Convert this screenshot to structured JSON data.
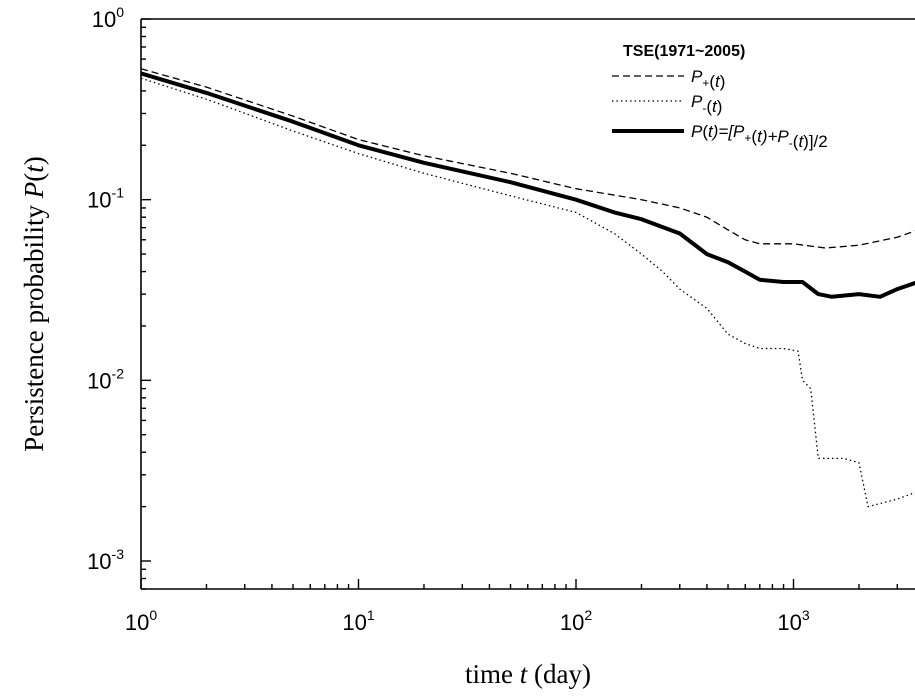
{
  "chart_data": {
    "type": "line",
    "title": "",
    "xlabel": {
      "prefix": "time ",
      "variable": "t",
      "suffix": " (day)"
    },
    "ylabel": {
      "prefix": "Persistence probability ",
      "symbol": "P",
      "paren_open": "(",
      "variable": "t",
      "paren_close": ")"
    },
    "x_scale": "log",
    "y_scale": "log",
    "xlim": [
      1,
      4000
    ],
    "ylim": [
      0.0007,
      1
    ],
    "x_ticks": [
      {
        "value": 1,
        "base": "10",
        "exp": "0"
      },
      {
        "value": 10,
        "base": "10",
        "exp": "1"
      },
      {
        "value": 100,
        "base": "10",
        "exp": "2"
      },
      {
        "value": 1000,
        "base": "10",
        "exp": "3"
      }
    ],
    "y_ticks": [
      {
        "value": 1,
        "base": "10",
        "exp": "0"
      },
      {
        "value": 0.1,
        "base": "10",
        "exp": "-1"
      },
      {
        "value": 0.01,
        "base": "10",
        "exp": "-2"
      },
      {
        "value": 0.001,
        "base": "10",
        "exp": "-3"
      }
    ],
    "grid": false,
    "legend_position": "top-right",
    "legend_title": "TSE(1971~2005)",
    "series": [
      {
        "key": "p_plus",
        "style": "dashed",
        "color": "#000000",
        "legend_parts": [
          {
            "t": "P",
            "sub": ""
          },
          {
            "t": "",
            "sub": "+"
          },
          {
            "t": "(",
            "sub": ""
          },
          {
            "t": "t",
            "sub": ""
          },
          {
            "t": ")",
            "sub": ""
          }
        ],
        "points": [
          [
            1,
            0.53
          ],
          [
            2,
            0.42
          ],
          [
            5,
            0.29
          ],
          [
            10,
            0.215
          ],
          [
            20,
            0.175
          ],
          [
            50,
            0.14
          ],
          [
            100,
            0.115
          ],
          [
            200,
            0.1
          ],
          [
            300,
            0.09
          ],
          [
            400,
            0.08
          ],
          [
            500,
            0.068
          ],
          [
            600,
            0.06
          ],
          [
            700,
            0.057
          ],
          [
            1000,
            0.057
          ],
          [
            1400,
            0.054
          ],
          [
            2000,
            0.056
          ],
          [
            3000,
            0.062
          ],
          [
            4000,
            0.07
          ]
        ]
      },
      {
        "key": "p_minus",
        "style": "dotted",
        "color": "#000000",
        "legend_parts": [
          {
            "t": "P",
            "sub": ""
          },
          {
            "t": "",
            "sub": "-"
          },
          {
            "t": "(",
            "sub": ""
          },
          {
            "t": "t",
            "sub": ""
          },
          {
            "t": ")",
            "sub": ""
          }
        ],
        "points": [
          [
            1,
            0.47
          ],
          [
            2,
            0.36
          ],
          [
            5,
            0.24
          ],
          [
            10,
            0.18
          ],
          [
            20,
            0.14
          ],
          [
            50,
            0.105
          ],
          [
            100,
            0.085
          ],
          [
            150,
            0.065
          ],
          [
            200,
            0.05
          ],
          [
            250,
            0.04
          ],
          [
            300,
            0.032
          ],
          [
            400,
            0.025
          ],
          [
            500,
            0.018
          ],
          [
            600,
            0.016
          ],
          [
            700,
            0.015
          ],
          [
            900,
            0.015
          ],
          [
            1050,
            0.0145
          ],
          [
            1100,
            0.01
          ],
          [
            1200,
            0.009
          ],
          [
            1300,
            0.0037
          ],
          [
            1700,
            0.0037
          ],
          [
            2000,
            0.0035
          ],
          [
            2200,
            0.002
          ],
          [
            3000,
            0.0022
          ],
          [
            4000,
            0.0025
          ]
        ]
      },
      {
        "key": "p_avg",
        "style": "solid-thick",
        "color": "#000000",
        "legend_parts": [
          {
            "t": "P",
            "sub": ""
          },
          {
            "t": "(",
            "sub": ""
          },
          {
            "t": "t",
            "sub": ""
          },
          {
            "t": ")=[P",
            "sub": ""
          },
          {
            "t": "",
            "sub": "+"
          },
          {
            "t": "(",
            "sub": ""
          },
          {
            "t": "t",
            "sub": ""
          },
          {
            "t": ")+P",
            "sub": ""
          },
          {
            "t": "",
            "sub": "-"
          },
          {
            "t": "(",
            "sub": ""
          },
          {
            "t": "t",
            "sub": ""
          },
          {
            "t": ")]/2",
            "sub": ""
          }
        ],
        "points": [
          [
            1,
            0.5
          ],
          [
            2,
            0.39
          ],
          [
            5,
            0.27
          ],
          [
            10,
            0.2
          ],
          [
            20,
            0.16
          ],
          [
            50,
            0.125
          ],
          [
            100,
            0.1
          ],
          [
            150,
            0.085
          ],
          [
            200,
            0.078
          ],
          [
            300,
            0.065
          ],
          [
            400,
            0.05
          ],
          [
            500,
            0.045
          ],
          [
            600,
            0.04
          ],
          [
            700,
            0.036
          ],
          [
            900,
            0.035
          ],
          [
            1100,
            0.035
          ],
          [
            1300,
            0.03
          ],
          [
            1500,
            0.029
          ],
          [
            2000,
            0.03
          ],
          [
            2500,
            0.029
          ],
          [
            3000,
            0.032
          ],
          [
            4000,
            0.036
          ]
        ]
      }
    ]
  }
}
